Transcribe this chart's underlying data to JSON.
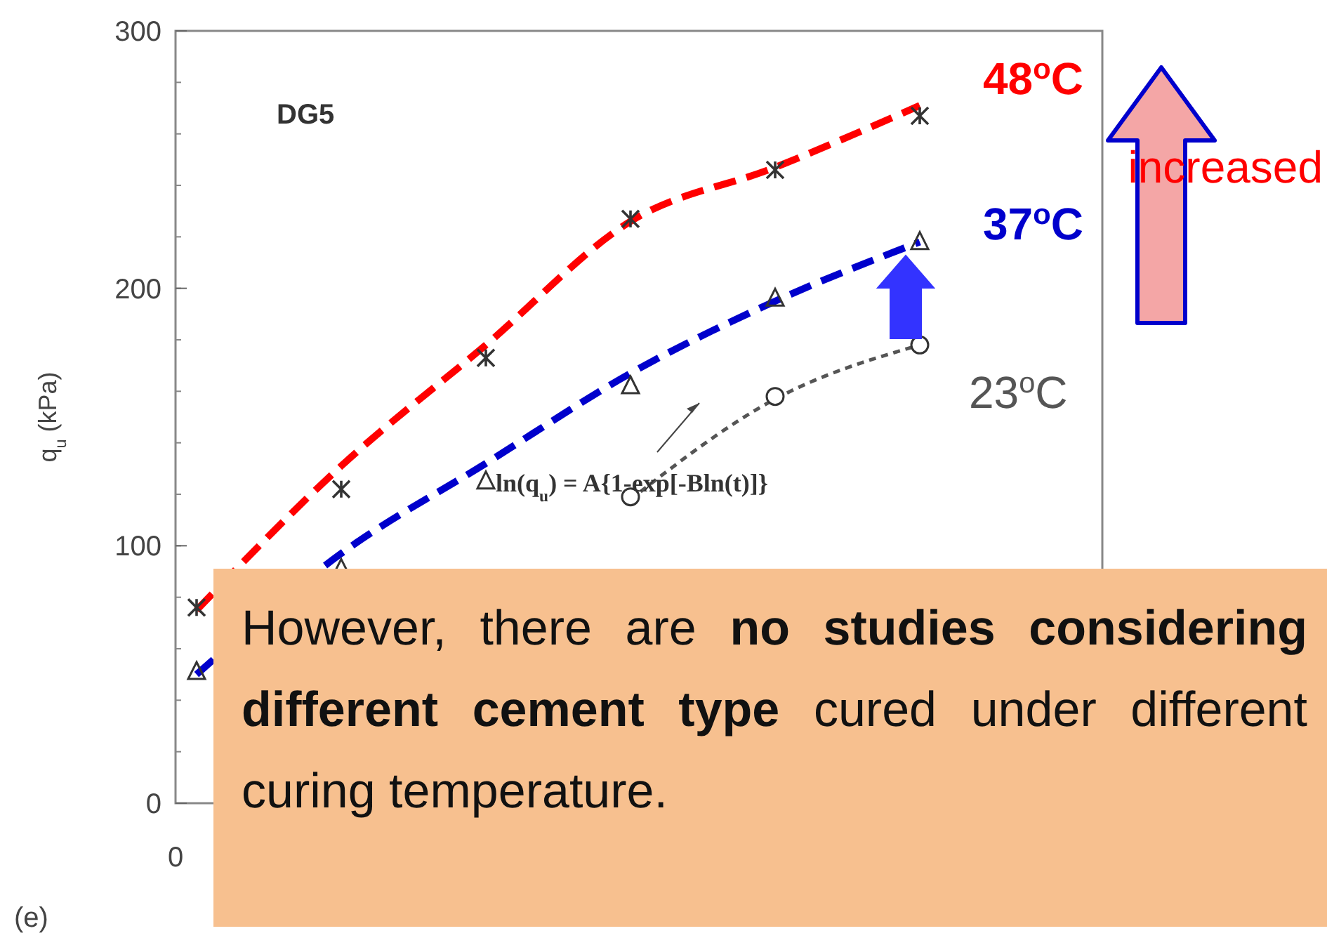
{
  "chart_data": {
    "type": "line",
    "ylabel": "q$_{u}$ (kPa)",
    "categories": [
      null,
      null,
      null,
      null,
      null,
      null
    ],
    "ylim": [
      0,
      300
    ],
    "yticks": [
      0,
      100,
      200,
      300
    ],
    "grid": false,
    "series": [
      {
        "name": "48$^{o}$C",
        "color": "#ff0000",
        "line_style": "dashed",
        "marker": "none",
        "values": [
          75,
          131,
          178,
          226,
          247,
          271
        ]
      },
      {
        "name": "37$^{o}$C",
        "color": "#0000cc",
        "line_style": "dashed",
        "marker": "none",
        "values": [
          50,
          97,
          132,
          167,
          195,
          218
        ]
      },
      {
        "name": "23$^{o}$C",
        "color": "#555555",
        "line_style": "dotted",
        "marker": "none",
        "values": [
          null,
          null,
          null,
          118,
          157,
          178
        ]
      },
      {
        "type": "scatter",
        "color": "#333333",
        "marker": "cross",
        "values": [
          76,
          122,
          173,
          227,
          246,
          267
        ]
      },
      {
        "type": "scatter",
        "color": "#333333",
        "marker": "triangle",
        "values": [
          51,
          91,
          125,
          162,
          196,
          218
        ]
      },
      {
        "type": "scatter",
        "color": "#333333",
        "marker": "circle",
        "values": [
          null,
          null,
          null,
          119,
          158,
          178
        ]
      }
    ],
    "annotations": [
      "DG5",
      "0",
      "increased",
      "ln(q$_{u}$) = A{1-exp[-Bln(t)]}",
      "(e)",
      "However, there are ",
      "no studies considering different cement type",
      " cured under different curing temperature."
    ]
  }
}
